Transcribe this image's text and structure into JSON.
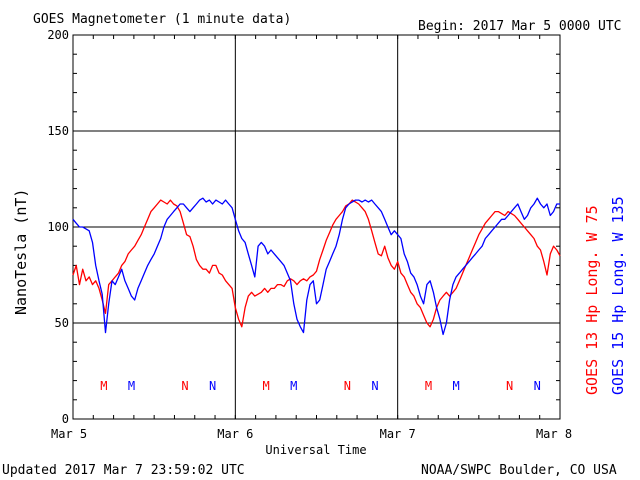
{
  "header": {
    "title": "GOES Magnetometer (1 minute data)",
    "begin": "Begin:  2017 Mar 5 0000 UTC"
  },
  "footer": {
    "updated": "Updated 2017 Mar  7 23:59:02 UTC",
    "credit": "NOAA/SWPC Boulder, CO USA"
  },
  "colors": {
    "goes13": "#ff0000",
    "goes15": "#0000ff",
    "axes": "#000000"
  },
  "chart_data": {
    "type": "line",
    "title": "GOES Magnetometer (1 minute data)",
    "xlabel": "Universal Time",
    "ylabel": "NanoTesla (nT)",
    "xlim": [
      0,
      3
    ],
    "ylim": [
      0,
      200
    ],
    "grid": true,
    "x_tick_labels": [
      {
        "x": 0,
        "label": "Mar 5"
      },
      {
        "x": 1,
        "label": "Mar 6"
      },
      {
        "x": 2,
        "label": "Mar 7"
      },
      {
        "x": 3,
        "label": "Mar 8"
      }
    ],
    "y_ticks": [
      0,
      50,
      100,
      150,
      200
    ],
    "x_units_note": "days since 2017 Mar 5 0000 UTC",
    "legend": [
      {
        "text": "GOES 15 Hp  Long. W 135",
        "color": "#0000ff"
      },
      {
        "text": "GOES 13 Hp  Long. W 75",
        "color": "#ff0000"
      }
    ],
    "markers": [
      {
        "x": 0.19,
        "label": "M",
        "series": "GOES 13"
      },
      {
        "x": 0.36,
        "label": "M",
        "series": "GOES 15"
      },
      {
        "x": 0.69,
        "label": "N",
        "series": "GOES 13"
      },
      {
        "x": 0.86,
        "label": "N",
        "series": "GOES 15"
      },
      {
        "x": 1.19,
        "label": "M",
        "series": "GOES 13"
      },
      {
        "x": 1.36,
        "label": "M",
        "series": "GOES 15"
      },
      {
        "x": 1.69,
        "label": "N",
        "series": "GOES 13"
      },
      {
        "x": 1.86,
        "label": "N",
        "series": "GOES 15"
      },
      {
        "x": 2.19,
        "label": "M",
        "series": "GOES 13"
      },
      {
        "x": 2.36,
        "label": "M",
        "series": "GOES 15"
      },
      {
        "x": 2.69,
        "label": "N",
        "series": "GOES 13"
      },
      {
        "x": 2.86,
        "label": "N",
        "series": "GOES 15"
      }
    ],
    "series": [
      {
        "name": "GOES 13 Hp",
        "color": "#ff0000",
        "points": [
          [
            0.0,
            75
          ],
          [
            0.02,
            80
          ],
          [
            0.04,
            70
          ],
          [
            0.06,
            78
          ],
          [
            0.08,
            72
          ],
          [
            0.1,
            74
          ],
          [
            0.12,
            70
          ],
          [
            0.14,
            72
          ],
          [
            0.16,
            68
          ],
          [
            0.18,
            62
          ],
          [
            0.2,
            55
          ],
          [
            0.22,
            70
          ],
          [
            0.24,
            72
          ],
          [
            0.26,
            74
          ],
          [
            0.28,
            76
          ],
          [
            0.3,
            80
          ],
          [
            0.32,
            82
          ],
          [
            0.34,
            86
          ],
          [
            0.36,
            88
          ],
          [
            0.38,
            90
          ],
          [
            0.4,
            93
          ],
          [
            0.42,
            96
          ],
          [
            0.44,
            100
          ],
          [
            0.46,
            104
          ],
          [
            0.48,
            108
          ],
          [
            0.5,
            110
          ],
          [
            0.52,
            112
          ],
          [
            0.54,
            114
          ],
          [
            0.56,
            113
          ],
          [
            0.58,
            112
          ],
          [
            0.6,
            114
          ],
          [
            0.62,
            112
          ],
          [
            0.64,
            111
          ],
          [
            0.66,
            108
          ],
          [
            0.68,
            102
          ],
          [
            0.7,
            96
          ],
          [
            0.72,
            95
          ],
          [
            0.74,
            90
          ],
          [
            0.76,
            83
          ],
          [
            0.78,
            80
          ],
          [
            0.8,
            78
          ],
          [
            0.82,
            78
          ],
          [
            0.84,
            76
          ],
          [
            0.86,
            80
          ],
          [
            0.88,
            80
          ],
          [
            0.9,
            76
          ],
          [
            0.92,
            75
          ],
          [
            0.94,
            72
          ],
          [
            0.96,
            70
          ],
          [
            0.98,
            68
          ],
          [
            1.0,
            58
          ],
          [
            1.02,
            52
          ],
          [
            1.04,
            48
          ],
          [
            1.06,
            58
          ],
          [
            1.08,
            64
          ],
          [
            1.1,
            66
          ],
          [
            1.12,
            64
          ],
          [
            1.14,
            65
          ],
          [
            1.16,
            66
          ],
          [
            1.18,
            68
          ],
          [
            1.2,
            66
          ],
          [
            1.22,
            68
          ],
          [
            1.24,
            68
          ],
          [
            1.26,
            70
          ],
          [
            1.28,
            70
          ],
          [
            1.3,
            69
          ],
          [
            1.32,
            72
          ],
          [
            1.34,
            73
          ],
          [
            1.36,
            72
          ],
          [
            1.38,
            70
          ],
          [
            1.4,
            72
          ],
          [
            1.42,
            73
          ],
          [
            1.44,
            72
          ],
          [
            1.46,
            74
          ],
          [
            1.48,
            75
          ],
          [
            1.5,
            77
          ],
          [
            1.52,
            83
          ],
          [
            1.54,
            88
          ],
          [
            1.56,
            93
          ],
          [
            1.58,
            97
          ],
          [
            1.6,
            101
          ],
          [
            1.62,
            104
          ],
          [
            1.64,
            106
          ],
          [
            1.66,
            108
          ],
          [
            1.68,
            111
          ],
          [
            1.7,
            112
          ],
          [
            1.72,
            114
          ],
          [
            1.74,
            113
          ],
          [
            1.76,
            112
          ],
          [
            1.78,
            110
          ],
          [
            1.8,
            108
          ],
          [
            1.82,
            104
          ],
          [
            1.84,
            98
          ],
          [
            1.86,
            92
          ],
          [
            1.88,
            86
          ],
          [
            1.9,
            85
          ],
          [
            1.92,
            90
          ],
          [
            1.94,
            84
          ],
          [
            1.96,
            80
          ],
          [
            1.98,
            78
          ],
          [
            2.0,
            82
          ],
          [
            2.02,
            76
          ],
          [
            2.04,
            74
          ],
          [
            2.06,
            70
          ],
          [
            2.08,
            66
          ],
          [
            2.1,
            64
          ],
          [
            2.12,
            60
          ],
          [
            2.14,
            58
          ],
          [
            2.16,
            54
          ],
          [
            2.18,
            50
          ],
          [
            2.2,
            48
          ],
          [
            2.22,
            52
          ],
          [
            2.24,
            58
          ],
          [
            2.26,
            62
          ],
          [
            2.28,
            64
          ],
          [
            2.3,
            66
          ],
          [
            2.32,
            64
          ],
          [
            2.34,
            66
          ],
          [
            2.36,
            68
          ],
          [
            2.38,
            72
          ],
          [
            2.4,
            76
          ],
          [
            2.42,
            80
          ],
          [
            2.44,
            84
          ],
          [
            2.46,
            88
          ],
          [
            2.48,
            92
          ],
          [
            2.5,
            96
          ],
          [
            2.52,
            99
          ],
          [
            2.54,
            102
          ],
          [
            2.56,
            104
          ],
          [
            2.58,
            106
          ],
          [
            2.6,
            108
          ],
          [
            2.62,
            108
          ],
          [
            2.64,
            107
          ],
          [
            2.66,
            106
          ],
          [
            2.68,
            108
          ],
          [
            2.7,
            107
          ],
          [
            2.72,
            106
          ],
          [
            2.74,
            104
          ],
          [
            2.76,
            102
          ],
          [
            2.78,
            100
          ],
          [
            2.8,
            98
          ],
          [
            2.82,
            96
          ],
          [
            2.84,
            94
          ],
          [
            2.86,
            90
          ],
          [
            2.88,
            88
          ],
          [
            2.9,
            82
          ],
          [
            2.92,
            75
          ],
          [
            2.94,
            86
          ],
          [
            2.96,
            90
          ],
          [
            2.98,
            88
          ],
          [
            3.0,
            85
          ]
        ]
      },
      {
        "name": "GOES 15 Hp",
        "color": "#0000ff",
        "points": [
          [
            0.0,
            104
          ],
          [
            0.02,
            102
          ],
          [
            0.04,
            100
          ],
          [
            0.06,
            100
          ],
          [
            0.08,
            99
          ],
          [
            0.1,
            98
          ],
          [
            0.12,
            92
          ],
          [
            0.14,
            80
          ],
          [
            0.16,
            72
          ],
          [
            0.18,
            65
          ],
          [
            0.2,
            45
          ],
          [
            0.22,
            60
          ],
          [
            0.24,
            72
          ],
          [
            0.26,
            70
          ],
          [
            0.28,
            74
          ],
          [
            0.3,
            78
          ],
          [
            0.32,
            72
          ],
          [
            0.34,
            68
          ],
          [
            0.36,
            64
          ],
          [
            0.38,
            62
          ],
          [
            0.4,
            68
          ],
          [
            0.42,
            72
          ],
          [
            0.44,
            76
          ],
          [
            0.46,
            80
          ],
          [
            0.48,
            83
          ],
          [
            0.5,
            86
          ],
          [
            0.52,
            90
          ],
          [
            0.54,
            94
          ],
          [
            0.56,
            100
          ],
          [
            0.58,
            104
          ],
          [
            0.6,
            106
          ],
          [
            0.62,
            108
          ],
          [
            0.64,
            110
          ],
          [
            0.66,
            112
          ],
          [
            0.68,
            112
          ],
          [
            0.7,
            110
          ],
          [
            0.72,
            108
          ],
          [
            0.74,
            110
          ],
          [
            0.76,
            112
          ],
          [
            0.78,
            114
          ],
          [
            0.8,
            115
          ],
          [
            0.82,
            113
          ],
          [
            0.84,
            114
          ],
          [
            0.86,
            112
          ],
          [
            0.88,
            114
          ],
          [
            0.9,
            113
          ],
          [
            0.92,
            112
          ],
          [
            0.94,
            114
          ],
          [
            0.96,
            112
          ],
          [
            0.98,
            110
          ],
          [
            1.0,
            104
          ],
          [
            1.02,
            98
          ],
          [
            1.04,
            94
          ],
          [
            1.06,
            92
          ],
          [
            1.08,
            86
          ],
          [
            1.1,
            80
          ],
          [
            1.12,
            74
          ],
          [
            1.14,
            90
          ],
          [
            1.16,
            92
          ],
          [
            1.18,
            90
          ],
          [
            1.2,
            86
          ],
          [
            1.22,
            88
          ],
          [
            1.24,
            86
          ],
          [
            1.26,
            84
          ],
          [
            1.28,
            82
          ],
          [
            1.3,
            80
          ],
          [
            1.32,
            76
          ],
          [
            1.34,
            72
          ],
          [
            1.36,
            60
          ],
          [
            1.38,
            52
          ],
          [
            1.4,
            48
          ],
          [
            1.42,
            45
          ],
          [
            1.44,
            62
          ],
          [
            1.46,
            70
          ],
          [
            1.48,
            72
          ],
          [
            1.5,
            60
          ],
          [
            1.52,
            62
          ],
          [
            1.54,
            70
          ],
          [
            1.56,
            78
          ],
          [
            1.58,
            82
          ],
          [
            1.6,
            86
          ],
          [
            1.62,
            90
          ],
          [
            1.64,
            96
          ],
          [
            1.66,
            104
          ],
          [
            1.68,
            110
          ],
          [
            1.7,
            112
          ],
          [
            1.72,
            113
          ],
          [
            1.74,
            114
          ],
          [
            1.76,
            114
          ],
          [
            1.78,
            113
          ],
          [
            1.8,
            114
          ],
          [
            1.82,
            113
          ],
          [
            1.84,
            114
          ],
          [
            1.86,
            112
          ],
          [
            1.88,
            110
          ],
          [
            1.9,
            108
          ],
          [
            1.92,
            104
          ],
          [
            1.94,
            100
          ],
          [
            1.96,
            96
          ],
          [
            1.98,
            98
          ],
          [
            2.0,
            96
          ],
          [
            2.02,
            94
          ],
          [
            2.04,
            86
          ],
          [
            2.06,
            82
          ],
          [
            2.08,
            76
          ],
          [
            2.1,
            74
          ],
          [
            2.12,
            70
          ],
          [
            2.14,
            64
          ],
          [
            2.16,
            60
          ],
          [
            2.18,
            70
          ],
          [
            2.2,
            72
          ],
          [
            2.22,
            66
          ],
          [
            2.24,
            58
          ],
          [
            2.26,
            52
          ],
          [
            2.28,
            44
          ],
          [
            2.3,
            50
          ],
          [
            2.32,
            62
          ],
          [
            2.34,
            70
          ],
          [
            2.36,
            74
          ],
          [
            2.38,
            76
          ],
          [
            2.4,
            78
          ],
          [
            2.42,
            80
          ],
          [
            2.44,
            82
          ],
          [
            2.46,
            84
          ],
          [
            2.48,
            86
          ],
          [
            2.5,
            88
          ],
          [
            2.52,
            90
          ],
          [
            2.54,
            94
          ],
          [
            2.56,
            96
          ],
          [
            2.58,
            98
          ],
          [
            2.6,
            100
          ],
          [
            2.62,
            102
          ],
          [
            2.64,
            104
          ],
          [
            2.66,
            104
          ],
          [
            2.68,
            106
          ],
          [
            2.7,
            108
          ],
          [
            2.72,
            110
          ],
          [
            2.74,
            112
          ],
          [
            2.76,
            108
          ],
          [
            2.78,
            104
          ],
          [
            2.8,
            106
          ],
          [
            2.82,
            110
          ],
          [
            2.84,
            112
          ],
          [
            2.86,
            115
          ],
          [
            2.88,
            112
          ],
          [
            2.9,
            110
          ],
          [
            2.92,
            112
          ],
          [
            2.94,
            106
          ],
          [
            2.96,
            108
          ],
          [
            2.98,
            112
          ],
          [
            3.0,
            112
          ]
        ]
      }
    ]
  }
}
